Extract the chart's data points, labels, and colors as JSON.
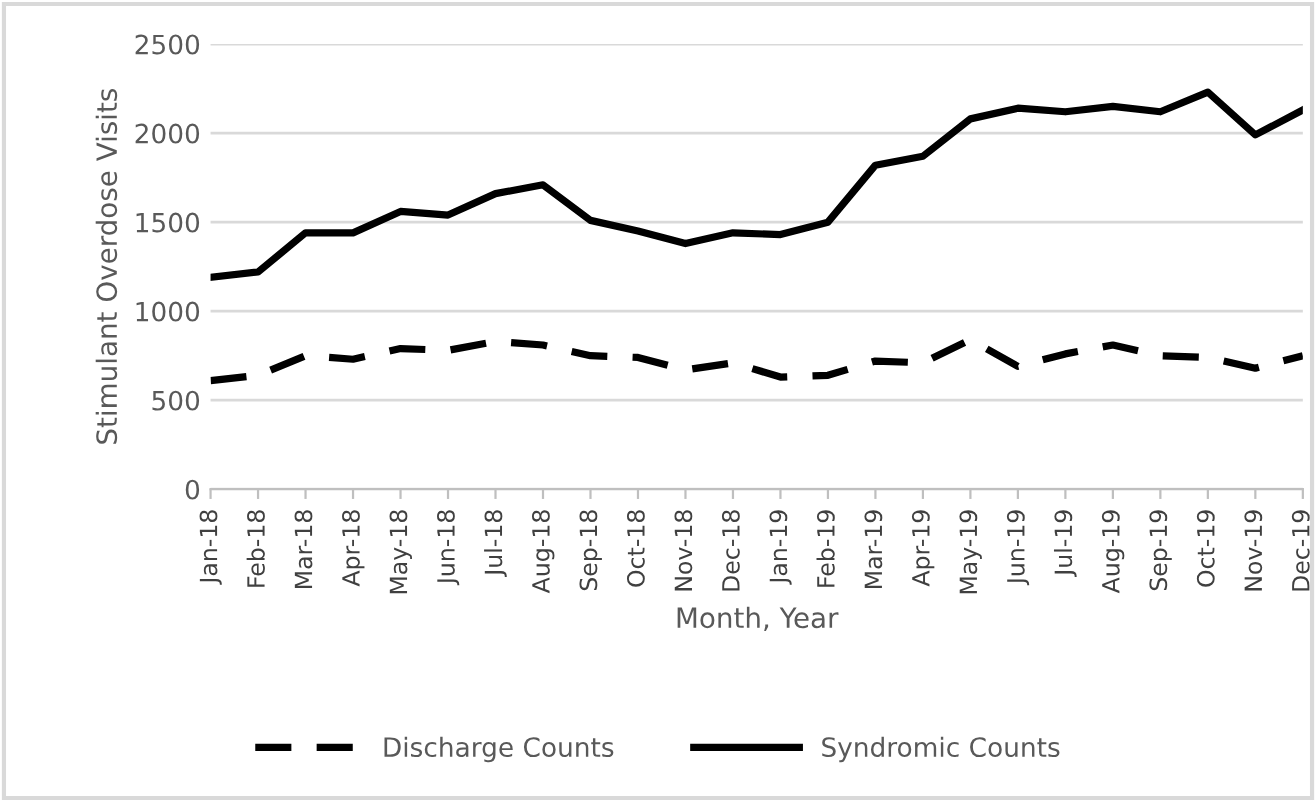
{
  "chart_data": {
    "type": "line",
    "xlabel": "Month, Year",
    "ylabel": "Stimulant Overdose Visits",
    "categories": [
      "Jan-18",
      "Feb-18",
      "Mar-18",
      "Apr-18",
      "May-18",
      "Jun-18",
      "Jul-18",
      "Aug-18",
      "Sep-18",
      "Oct-18",
      "Nov-18",
      "Dec-18",
      "Jan-19",
      "Feb-19",
      "Mar-19",
      "Apr-19",
      "May-19",
      "Jun-19",
      "Jul-19",
      "Aug-19",
      "Sep-19",
      "Oct-19",
      "Nov-19",
      "Dec-19"
    ],
    "series": [
      {
        "name": "Discharge Counts",
        "color": "#000000",
        "line_style": "dashed",
        "values": [
          610,
          640,
          750,
          730,
          790,
          780,
          830,
          810,
          750,
          740,
          670,
          710,
          630,
          640,
          720,
          710,
          840,
          690,
          760,
          810,
          750,
          740,
          680,
          750
        ]
      },
      {
        "name": "Syndromic Counts",
        "color": "#000000",
        "line_style": "solid",
        "values": [
          1190,
          1220,
          1440,
          1440,
          1560,
          1540,
          1660,
          1710,
          1510,
          1450,
          1380,
          1440,
          1430,
          1500,
          1820,
          1870,
          2080,
          2140,
          2120,
          2150,
          2120,
          2230,
          1990,
          2130
        ]
      }
    ],
    "ylim": [
      0,
      2500
    ],
    "yticks": [
      0,
      500,
      1000,
      1500,
      2000,
      2500
    ],
    "grid": "y",
    "legend": "bottom",
    "marker": "none"
  }
}
